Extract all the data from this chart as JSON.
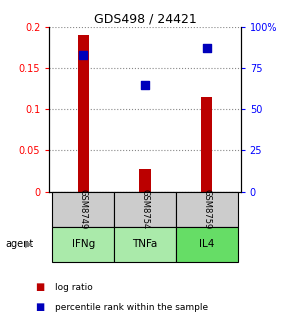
{
  "title": "GDS498 / 24421",
  "samples": [
    "GSM8749",
    "GSM8754",
    "GSM8759"
  ],
  "agents": [
    "IFNg",
    "TNFa",
    "IL4"
  ],
  "log_ratios": [
    0.19,
    0.027,
    0.115
  ],
  "percentile_ranks": [
    83,
    65,
    87
  ],
  "bar_color": "#bb0000",
  "dot_color": "#0000bb",
  "ylim_left": [
    0,
    0.2
  ],
  "ylim_right": [
    0,
    100
  ],
  "yticks_left": [
    0,
    0.05,
    0.1,
    0.15,
    0.2
  ],
  "ytick_labels_left": [
    "0",
    "0.05",
    "0.1",
    "0.15",
    "0.2"
  ],
  "yticks_right": [
    0,
    25,
    50,
    75,
    100
  ],
  "ytick_labels_right": [
    "0",
    "25",
    "50",
    "75",
    "100%"
  ],
  "sample_bg_color": "#cccccc",
  "agent_bg_color_light": "#aaeaaa",
  "agent_bg_color_dark": "#66dd66",
  "grid_color": "#888888",
  "bar_width": 0.18,
  "dot_size": 30,
  "legend_red_label": "log ratio",
  "legend_blue_label": "percentile rank within the sample",
  "title_fontsize": 9,
  "tick_fontsize": 7,
  "sample_fontsize": 6,
  "agent_fontsize": 7.5
}
